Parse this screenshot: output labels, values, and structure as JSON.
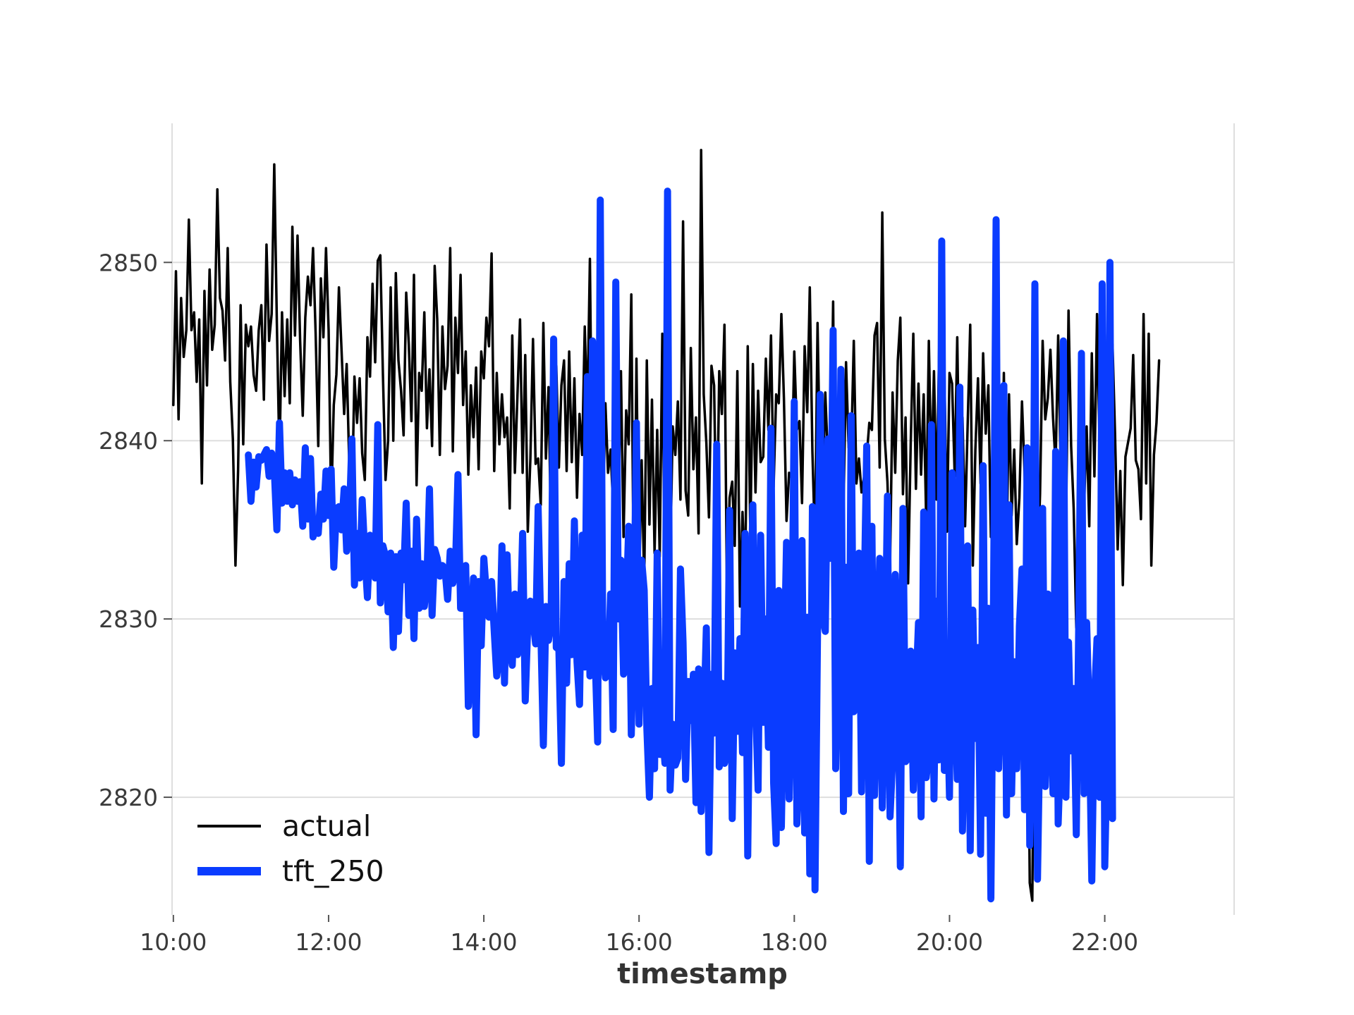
{
  "chart_data": {
    "type": "line",
    "title": "",
    "xlabel": "timestamp",
    "ylabel": "",
    "x_unit": "time of day (hours)",
    "xlim": [
      "09:59",
      "23:40"
    ],
    "ylim": [
      2813.4,
      2857.8
    ],
    "x_ticks": [
      "10:00",
      "12:00",
      "14:00",
      "16:00",
      "18:00",
      "20:00",
      "22:00"
    ],
    "y_ticks": [
      "2820",
      "2830",
      "2840",
      "2850"
    ],
    "grid": true,
    "legend_position": "lower-left",
    "colors": {
      "actual": "#000000",
      "tft_250": "#0a3cff",
      "grid": "#dedede"
    },
    "series": [
      {
        "name": "actual",
        "color": "#000000",
        "interval_minutes": 2,
        "start": "10:00",
        "values": [
          2842.0,
          2849.5,
          2841.2,
          2848.0,
          2844.7,
          2846.2,
          2852.4,
          2846.2,
          2847.2,
          2843.3,
          2846.8,
          2837.6,
          2848.4,
          2843.1,
          2849.6,
          2845.1,
          2846.5,
          2854.1,
          2848.0,
          2847.3,
          2844.5,
          2850.8,
          2843.3,
          2840.1,
          2833.0,
          2838.3,
          2847.6,
          2839.8,
          2846.5,
          2845.3,
          2846.4,
          2843.7,
          2842.8,
          2846.2,
          2847.6,
          2842.3,
          2851.0,
          2845.6,
          2847.1,
          2855.5,
          2846.6,
          2838.9,
          2847.2,
          2842.5,
          2846.8,
          2842.1,
          2852.0,
          2845.9,
          2851.5,
          2845.6,
          2841.4,
          2846.9,
          2849.2,
          2847.6,
          2850.8,
          2846.0,
          2839.7,
          2849.1,
          2845.8,
          2850.8,
          2846.2,
          2836.3,
          2842.0,
          2843.7,
          2848.6,
          2845.1,
          2841.5,
          2844.3,
          2838.6,
          2836.4,
          2843.6,
          2841.0,
          2843.5,
          2839.3,
          2837.8,
          2845.8,
          2843.6,
          2848.8,
          2844.4,
          2850.1,
          2850.4,
          2843.7,
          2837.8,
          2840.0,
          2848.6,
          2840.0,
          2849.4,
          2844.5,
          2842.8,
          2840.3,
          2848.3,
          2845.4,
          2841.1,
          2849.3,
          2837.5,
          2843.8,
          2842.8,
          2847.2,
          2840.7,
          2844.0,
          2839.7,
          2849.8,
          2846.8,
          2839.2,
          2846.4,
          2842.9,
          2844.2,
          2850.8,
          2839.4,
          2846.9,
          2843.8,
          2849.3,
          2842.0,
          2845.0,
          2838.1,
          2843.1,
          2840.2,
          2844.1,
          2838.4,
          2845.0,
          2843.5,
          2846.9,
          2845.3,
          2850.5,
          2838.3,
          2843.8,
          2839.8,
          2842.6,
          2840.2,
          2841.3,
          2836.2,
          2845.9,
          2838.2,
          2842.6,
          2846.8,
          2838.2,
          2844.8,
          2834.9,
          2839.0,
          2845.7,
          2838.7,
          2839.0,
          2836.4,
          2846.6,
          2839.0,
          2843.0,
          2834.3,
          2842.0,
          2844.2,
          2838.5,
          2843.1,
          2844.5,
          2838.3,
          2845.0,
          2838.8,
          2843.5,
          2836.8,
          2841.5,
          2839.2,
          2846.4,
          2841.3,
          2850.2,
          2835.8,
          2840.7,
          2838.9,
          2846.7,
          2835.4,
          2842.1,
          2838.2,
          2839.5,
          2836.2,
          2841.9,
          2836.0,
          2843.9,
          2834.6,
          2841.7,
          2839.8,
          2848.2,
          2830.2,
          2844.6,
          2831.7,
          2838.9,
          2832.0,
          2844.5,
          2835.3,
          2842.3,
          2833.7,
          2840.6,
          2833.5,
          2846.0,
          2831.3,
          2838.8,
          2833.0,
          2840.8,
          2839.2,
          2842.2,
          2836.7,
          2852.3,
          2837.2,
          2835.8,
          2845.2,
          2838.4,
          2841.3,
          2834.8,
          2856.3,
          2842.6,
          2839.9,
          2835.7,
          2844.2,
          2843.1,
          2833.8,
          2843.9,
          2841.5,
          2846.5,
          2831.0,
          2836.8,
          2837.7,
          2834.1,
          2843.9,
          2830.7,
          2836.0,
          2832.0,
          2845.3,
          2834.6,
          2844.3,
          2837.1,
          2842.8,
          2838.8,
          2839.1,
          2844.6,
          2840.6,
          2845.9,
          2837.4,
          2842.6,
          2842.1,
          2847.1,
          2842.4,
          2835.5,
          2838.2,
          2837.9,
          2845.0,
          2840.6,
          2841.1,
          2836.5,
          2845.3,
          2841.6,
          2848.6,
          2839.4,
          2834.1,
          2846.6,
          2838.2,
          2837.5,
          2842.7,
          2838.9,
          2837.3,
          2847.8,
          2831.8,
          2840.0,
          2838.9,
          2835.8,
          2844.4,
          2839.6,
          2839.4,
          2845.6,
          2837.6,
          2839.0,
          2837.1,
          2838.0,
          2839.1,
          2841.0,
          2840.6,
          2845.9,
          2846.6,
          2838.5,
          2852.8,
          2840.1,
          2837.7,
          2833.0,
          2842.7,
          2838.2,
          2844.5,
          2846.9,
          2837.0,
          2841.3,
          2832.0,
          2839.8,
          2846.0,
          2837.3,
          2843.2,
          2838.1,
          2842.6,
          2835.4,
          2845.6,
          2838.0,
          2843.9,
          2836.7,
          2845.3,
          2842.6,
          2844.1,
          2834.9,
          2843.8,
          2843.2,
          2838.0,
          2845.8,
          2836.0,
          2841.3,
          2835.2,
          2840.8,
          2846.5,
          2833.0,
          2839.5,
          2843.5,
          2837.6,
          2844.9,
          2840.4,
          2843.1,
          2834.6,
          2838.1,
          2841.8,
          2839.4,
          2835.1,
          2843.8,
          2833.3,
          2842.6,
          2835.8,
          2839.5,
          2834.2,
          2836.8,
          2842.2,
          2838.3,
          2832.0,
          2815.2,
          2814.2,
          2830.2,
          2832.5,
          2837.0,
          2845.6,
          2841.2,
          2842.4,
          2845.1,
          2841.3,
          2838.6,
          2845.9,
          2838.2,
          2842.6,
          2834.6,
          2847.3,
          2839.7,
          2836.2,
          2829.5,
          2838.8,
          2842.1,
          2836.3,
          2840.8,
          2835.2,
          2844.9,
          2838.0,
          2847.1,
          2839.6,
          2842.2,
          2835.7,
          2846.0,
          2839.8,
          2845.4,
          2840.3,
          2833.9,
          2838.3,
          2831.9,
          2839.1,
          2839.9,
          2840.7,
          2844.8,
          2838.9,
          2838.4,
          2835.6,
          2847.1,
          2837.6,
          2846.0,
          2833.0,
          2839.2,
          2841.0,
          2844.5
        ]
      },
      {
        "name": "tft_250",
        "color": "#0a3cff",
        "interval_minutes": 2,
        "start": "10:58",
        "values": [
          2839.2,
          2836.6,
          2838.8,
          2837.4,
          2839.1,
          2838.9,
          2839.2,
          2839.5,
          2838.0,
          2839.3,
          2838.4,
          2835.0,
          2841.0,
          2836.5,
          2838.2,
          2836.6,
          2838.2,
          2836.4,
          2837.8,
          2836.6,
          2837.7,
          2835.2,
          2839.6,
          2835.6,
          2839.0,
          2834.6,
          2835.3,
          2834.8,
          2837.0,
          2835.6,
          2838.3,
          2835.8,
          2838.4,
          2832.9,
          2836.2,
          2836.3,
          2835.0,
          2837.3,
          2833.8,
          2835.5,
          2840.1,
          2831.9,
          2834.8,
          2832.3,
          2836.7,
          2833.6,
          2831.2,
          2834.7,
          2833.8,
          2832.3,
          2840.9,
          2830.9,
          2834.1,
          2833.5,
          2830.4,
          2833.7,
          2828.4,
          2833.5,
          2829.3,
          2833.7,
          2832.2,
          2836.5,
          2830.2,
          2833.8,
          2828.9,
          2835.6,
          2830.6,
          2833.1,
          2830.7,
          2832.3,
          2837.3,
          2830.2,
          2833.9,
          2833.4,
          2832.4,
          2833.0,
          2832.8,
          2831.1,
          2833.8,
          2832.0,
          2832.7,
          2838.1,
          2830.6,
          2830.6,
          2833.0,
          2825.1,
          2828.4,
          2832.3,
          2823.5,
          2832.1,
          2828.5,
          2833.4,
          2831.4,
          2830.1,
          2832.1,
          2829.3,
          2826.8,
          2828.0,
          2834.1,
          2826.4,
          2833.6,
          2828.5,
          2827.4,
          2831.4,
          2828.0,
          2829.3,
          2834.8,
          2825.4,
          2829.7,
          2831.0,
          2829.9,
          2828.6,
          2836.3,
          2829.5,
          2822.9,
          2830.7,
          2828.8,
          2829.9,
          2845.7,
          2828.4,
          2828.3,
          2821.9,
          2832.1,
          2826.4,
          2833.1,
          2828.0,
          2835.5,
          2827.6,
          2825.2,
          2834.7,
          2827.3,
          2843.6,
          2826.8,
          2845.6,
          2828.1,
          2823.1,
          2853.5,
          2828.2,
          2826.7,
          2826.9,
          2831.4,
          2823.8,
          2848.9,
          2830.0,
          2833.3,
          2826.9,
          2830.5,
          2835.2,
          2823.5,
          2829.9,
          2841.0,
          2824.1,
          2833.3,
          2831.6,
          2823.9,
          2820.0,
          2826.1,
          2821.6,
          2833.7,
          2822.4,
          2824.0,
          2821.9,
          2854.0,
          2820.4,
          2824.1,
          2821.8,
          2822.2,
          2832.8,
          2828.7,
          2821.0,
          2826.5,
          2824.3,
          2826.9,
          2819.7,
          2827.2,
          2819.2,
          2824.1,
          2829.5,
          2816.9,
          2826.9,
          2823.6,
          2839.8,
          2821.7,
          2826.4,
          2821.9,
          2822.6,
          2836.1,
          2818.8,
          2828.1,
          2823.7,
          2828.9,
          2822.5,
          2834.8,
          2816.7,
          2829.6,
          2836.4,
          2825.5,
          2820.4,
          2834.7,
          2824.2,
          2830.0,
          2822.8,
          2840.7,
          2820.8,
          2817.4,
          2831.6,
          2818.3,
          2826.6,
          2834.3,
          2819.9,
          2827.4,
          2842.2,
          2818.5,
          2822.5,
          2834.4,
          2818.0,
          2830.1,
          2815.7,
          2836.3,
          2814.8,
          2829.3,
          2842.6,
          2830.1,
          2829.3,
          2840.1,
          2833.4,
          2846.2,
          2821.6,
          2830.2,
          2844.0,
          2819.2,
          2832.9,
          2820.2,
          2841.4,
          2824.8,
          2826.4,
          2833.7,
          2820.3,
          2831.1,
          2839.7,
          2816.4,
          2835.2,
          2820.1,
          2826.1,
          2833.4,
          2819.4,
          2826.4,
          2836.9,
          2818.9,
          2822.1,
          2832.5,
          2827.6,
          2816.1,
          2836.2,
          2822.0,
          2822.2,
          2828.2,
          2820.4,
          2825.9,
          2829.8,
          2818.9,
          2836.0,
          2821.1,
          2822.5,
          2840.9,
          2819.9,
          2831.0,
          2822.1,
          2851.2,
          2821.5,
          2826.4,
          2820.0,
          2838.2,
          2826.2,
          2821.0,
          2843.0,
          2818.1,
          2825.9,
          2834.1,
          2817.0,
          2830.5,
          2823.3,
          2828.4,
          2816.8,
          2838.6,
          2819.1,
          2830.6,
          2814.3,
          2831.0,
          2852.4,
          2821.6,
          2826.8,
          2843.1,
          2819.0,
          2836.4,
          2820.2,
          2827.6,
          2821.6,
          2829.6,
          2832.8,
          2819.3,
          2839.6,
          2817.3,
          2824.6,
          2848.8,
          2815.4,
          2824.3,
          2836.2,
          2820.6,
          2831.4,
          2825.1,
          2820.2,
          2839.4,
          2818.5,
          2823.0,
          2845.6,
          2820.0,
          2828.7,
          2822.6,
          2826.1,
          2817.9,
          2830.6,
          2844.9,
          2820.2,
          2829.8,
          2824.4,
          2815.3,
          2825.5,
          2828.9,
          2820.0,
          2848.8,
          2816.1,
          2823.1,
          2850.0,
          2818.8
        ]
      }
    ]
  },
  "legend": {
    "items": [
      {
        "label": "actual"
      },
      {
        "label": "tft_250"
      }
    ]
  }
}
